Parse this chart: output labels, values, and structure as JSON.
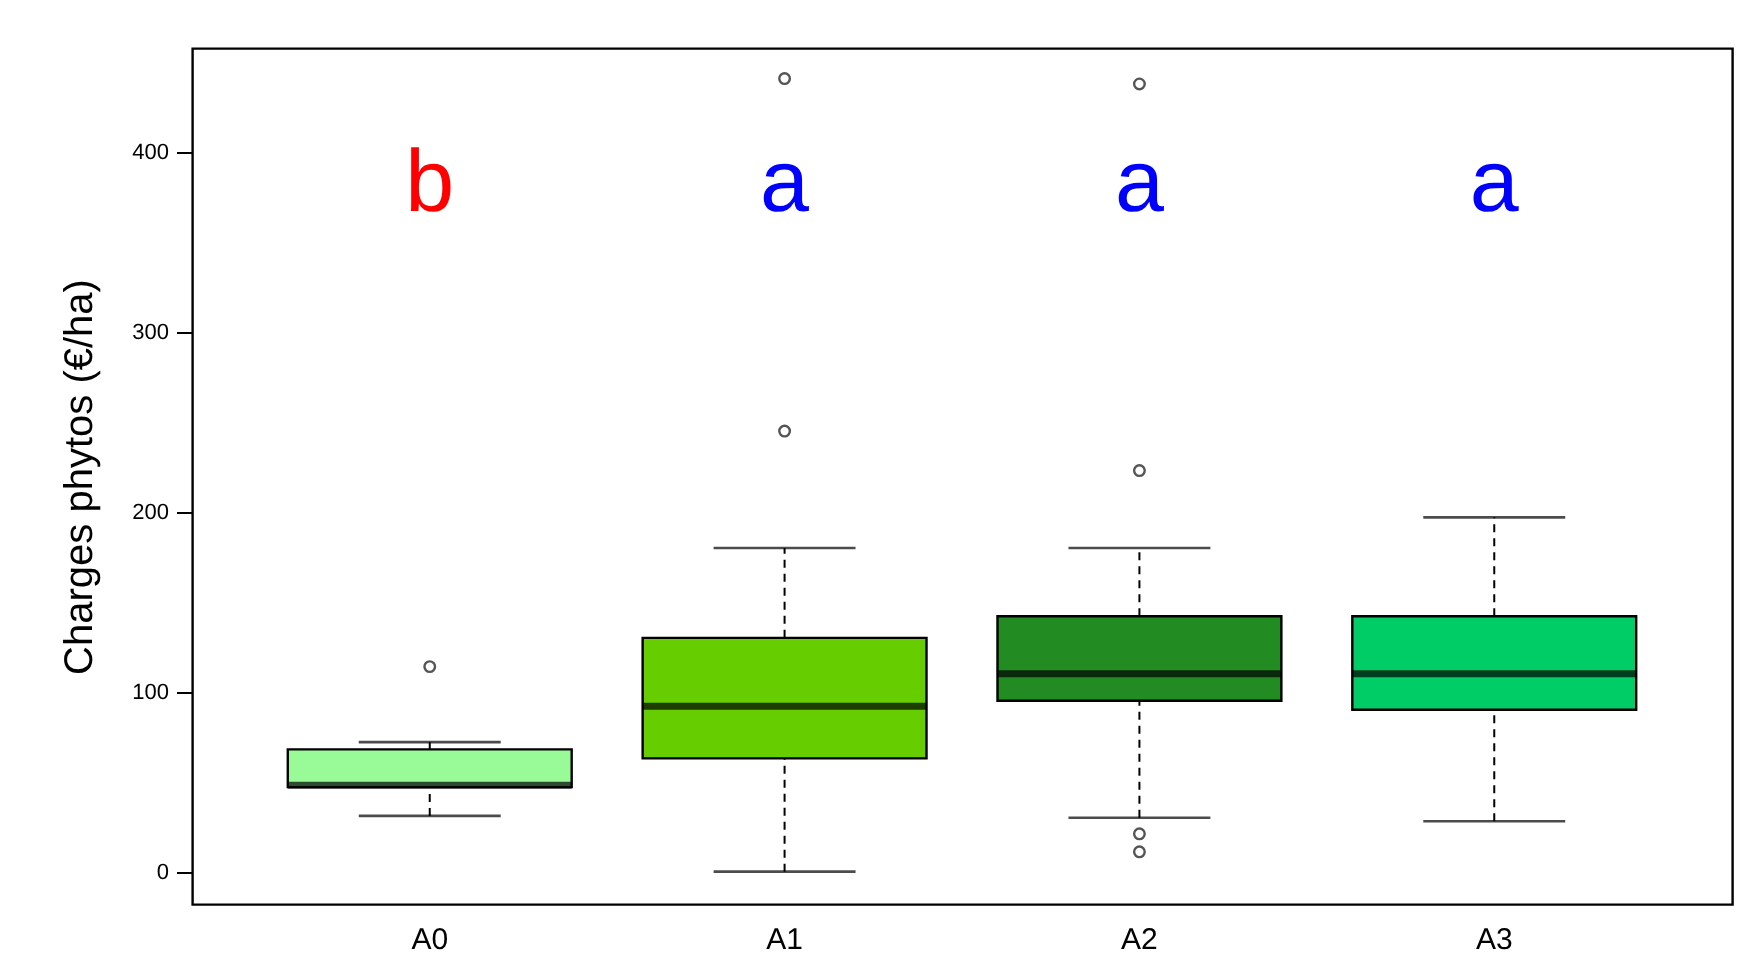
{
  "chart_data": {
    "type": "box",
    "ylabel": "Charges phytos (€/ha)",
    "categories": [
      "A0",
      "A1",
      "A2",
      "A3"
    ],
    "colors": [
      "#98fb98",
      "#66cd00",
      "#228b22",
      "#00cd66"
    ],
    "boxes": [
      {
        "low": 31,
        "q1": 47,
        "median": 48,
        "q3": 68,
        "high": 72,
        "outliers": [
          114
        ]
      },
      {
        "low": 0,
        "q1": 63,
        "median": 92,
        "q3": 130,
        "high": 180,
        "outliers": [
          245,
          441
        ]
      },
      {
        "low": 30,
        "q1": 95,
        "median": 110,
        "q3": 142,
        "high": 180,
        "outliers": [
          11,
          21,
          223,
          438
        ]
      },
      {
        "low": 28,
        "q1": 90,
        "median": 110,
        "q3": 142,
        "high": 197
      }
    ],
    "ylim": [
      -18,
      458
    ],
    "yticks": [
      0,
      100,
      200,
      300,
      400
    ],
    "grid": false,
    "annotations": [
      "b",
      "a",
      "a",
      "a"
    ]
  }
}
